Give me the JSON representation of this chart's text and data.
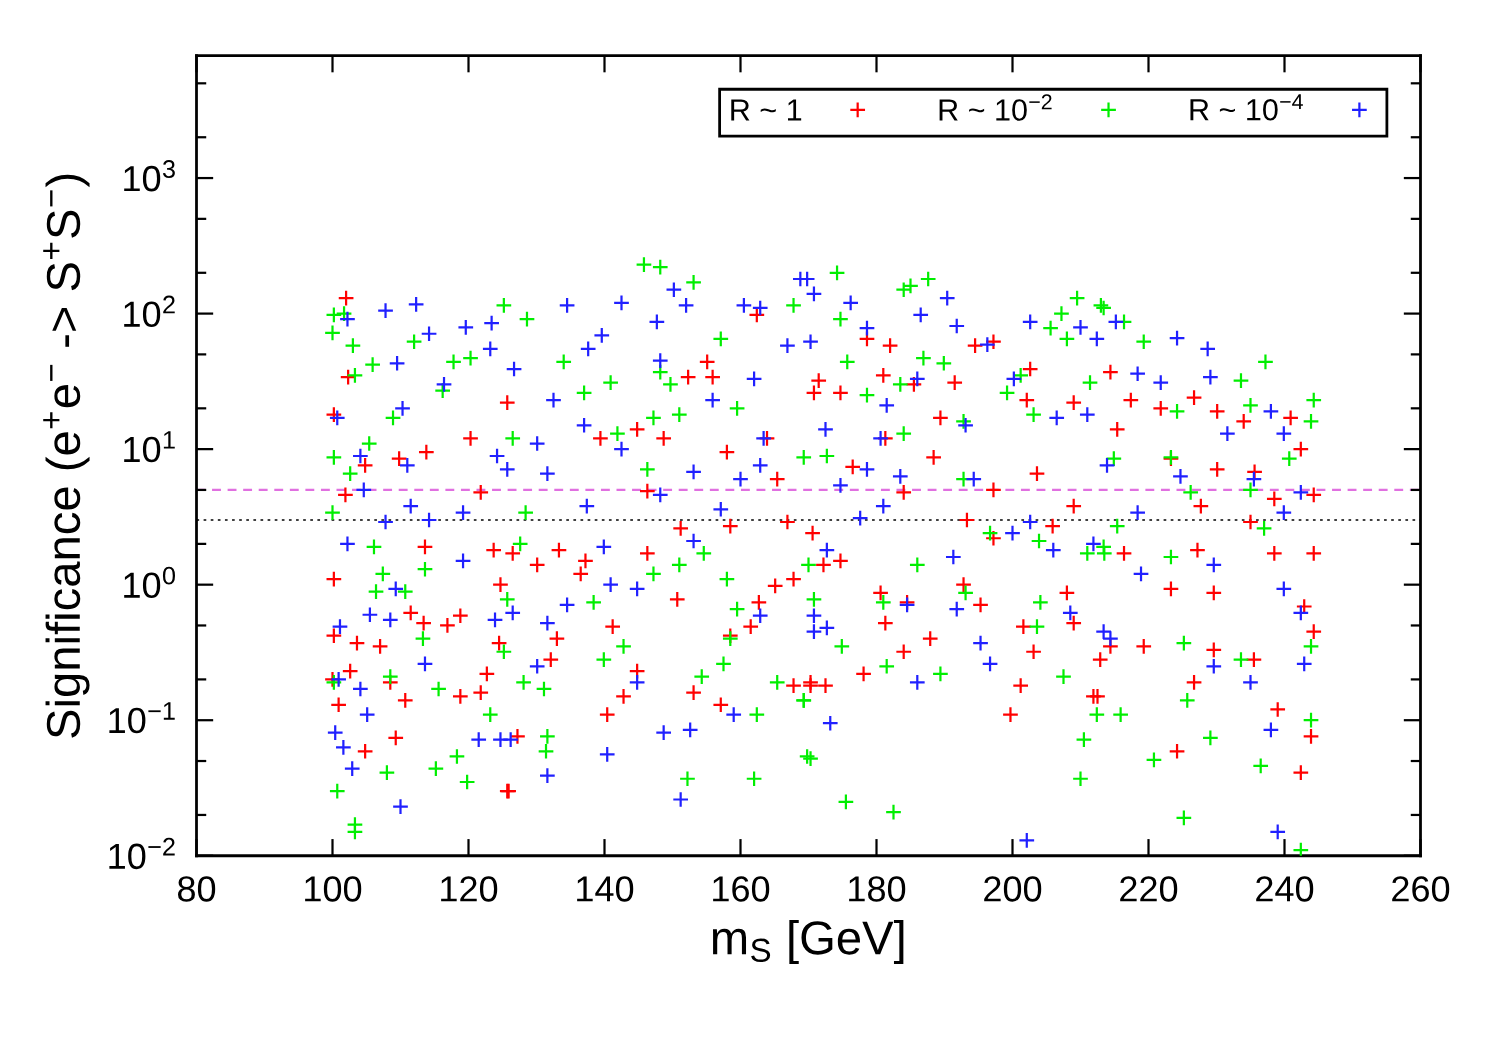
{
  "chart_data": {
    "type": "scatter",
    "xlabel": "m$_{S}$ [GeV]",
    "ylabel": "Significance (e$^{+}$e$^{−}$ -> S$^{+}$S$^{−}$)",
    "xlim": [
      80,
      260
    ],
    "xticks": [
      80,
      100,
      120,
      140,
      160,
      180,
      200,
      220,
      240,
      260
    ],
    "ylim": [
      0.01,
      8000
    ],
    "log": true,
    "yticks": [
      {
        "value": 0.01,
        "label": "10$^{−2}$"
      },
      {
        "value": 0.1,
        "label": "10$^{−1}$"
      },
      {
        "value": 1,
        "label": "10$^{0}$"
      },
      {
        "value": 10,
        "label": "10$^{1}$"
      },
      {
        "value": 100,
        "label": "10$^{2}$"
      },
      {
        "value": 1000,
        "label": "10$^{3}$"
      },
      {
        "value": 0.02,
        "label": null
      },
      {
        "value": 0.05,
        "label": null
      },
      {
        "value": 0.2,
        "label": null
      },
      {
        "value": 0.5,
        "label": null
      },
      {
        "value": 2,
        "label": null
      },
      {
        "value": 5,
        "label": null
      },
      {
        "value": 20,
        "label": null
      },
      {
        "value": 50,
        "label": null
      },
      {
        "value": 200,
        "label": null
      },
      {
        "value": 500,
        "label": null
      },
      {
        "value": 2000,
        "label": null
      },
      {
        "value": 5000,
        "label": null
      }
    ],
    "marker": "cross",
    "legend": "top right",
    "ref_lines": [
      {
        "axis": "y",
        "value": 5,
        "color": "#e070e0",
        "line_style": "dashed"
      },
      {
        "axis": "y",
        "value": 3,
        "color": "#404040",
        "line_style": "dotted"
      }
    ],
    "series": [
      {
        "name": "R ~ 1",
        "color": "#ff0000",
        "x": [
          102,
          102.3,
          100.2,
          104.8,
          101.9,
          100.2,
          100.2,
          102.6,
          103.6,
          107,
          108.5,
          110.7,
          109.3,
          104.8,
          111.5,
          113.4,
          113.6,
          116.9,
          118.8,
          120.3,
          121.8,
          124.7,
          123.7,
          124.5,
          122.7,
          118.8,
          121.8,
          125.7,
          113.8,
          109.8,
          100,
          100.9,
          146.3,
          148.7,
          152.3,
          155.9,
          155.1,
          158,
          158.5,
          163.9,
          165.4,
          170.8,
          170.6,
          167.8,
          165.1,
          162.7,
          158.5,
          157.1,
          153.1,
          144.8,
          142.8,
          140.4,
          141.2,
          137.2,
          133.3,
          136.5,
          132.1,
          133,
          127.2,
          125.9,
          126.5,
          125.7,
          130.1,
          150.7,
          167.8,
          170.3,
          161.5,
          151.2,
          146.3,
          144.8,
          166.9,
          162.4,
          139.4,
          171.5,
          174.7,
          178.6,
          182,
          181,
          185.5,
          189.4,
          191.5,
          194.5,
          197.2,
          202.1,
          202.6,
          209,
          214.4,
          176.5,
          181.3,
          184,
          188.4,
          197.2,
          203.6,
          209,
          193.3,
          197.2,
          205.9,
          172.2,
          174.7,
          180.6,
          184.5,
          192.8,
          195.3,
          208,
          209,
          201.6,
          203.1,
          212.9,
          214.4,
          181.3,
          184,
          187.9,
          178.1,
          172.5,
          170.3,
          201.2,
          199.7,
          211.9,
          217.4,
          221.8,
          226.7,
          230.1,
          234,
          240.9,
          242.4,
          215.4,
          223.3,
          230.1,
          235.6,
          238.5,
          244.3,
          227.7,
          235,
          216.4,
          227.2,
          238.5,
          244.3,
          223.3,
          229.6,
          242.9,
          219.3,
          229.6,
          235.5,
          244.3,
          212.5,
          239,
          243.9,
          224.2,
          242.4,
          226.7
        ],
        "values": [
          130,
          34,
          18,
          7.6,
          4.6,
          1.1,
          0.42,
          0.23,
          0.37,
          0.35,
          0.19,
          0.14,
          0.074,
          0.059,
          0.62,
          0.52,
          1.9,
          0.5,
          0.59,
          12,
          4.8,
          1.0,
          1.8,
          0.37,
          0.22,
          0.15,
          0.16,
          0.03,
          9.5,
          8.5,
          0.2,
          0.13,
          4.9,
          12,
          34,
          34,
          44,
          9.5,
          2.7,
          12,
          6,
          26,
          2.4,
          1.1,
          0.98,
          0.74,
          0.42,
          0.13,
          0.16,
          0.23,
          0.15,
          0.11,
          0.49,
          1.5,
          1.8,
          1.2,
          0.28,
          0.4,
          0.076,
          0.03,
          1.7,
          22,
          1.4,
          0.78,
          0.18,
          0.18,
          0.49,
          2.6,
          1.7,
          14,
          2.9,
          98,
          12,
          32,
          26,
          65,
          58,
          35,
          30,
          17,
          31,
          58,
          62,
          23,
          39,
          22,
          37,
          7.4,
          12,
          4.8,
          8.7,
          5,
          6.6,
          3.8,
          3,
          2.2,
          2.7,
          1.4,
          1.5,
          0.87,
          0.74,
          1.0,
          0.71,
          0.87,
          0.52,
          0.49,
          0.32,
          0.28,
          0.35,
          0.52,
          0.32,
          0.4,
          0.22,
          0.18,
          0.19,
          0.18,
          0.11,
          0.15,
          23,
          20,
          24,
          19,
          16,
          17,
          10,
          14,
          8.5,
          7.1,
          6.8,
          4.3,
          4.6,
          3.8,
          2.9,
          1.7,
          1.8,
          1.7,
          1.7,
          0.93,
          0.87,
          0.69,
          0.35,
          0.33,
          0.28,
          0.45,
          0.15,
          0.12,
          0.076,
          0.059,
          0.041,
          0.19
        ]
      },
      {
        "name": "R ~ 10$^{−2}$",
        "color": "#00ee00",
        "x": [
          100.2,
          101.7,
          100,
          103,
          103.3,
          105.9,
          108.9,
          105.4,
          100.2,
          102.6,
          100,
          106.1,
          107.4,
          106.4,
          110.7,
          113.6,
          113.3,
          108.5,
          100.2,
          108,
          115.2,
          119.8,
          118.3,
          103.3,
          103.3,
          100.7,
          116.2,
          125.2,
          120.3,
          117.8,
          112,
          123.2,
          125.2,
          115.6,
          145.8,
          148.2,
          153.1,
          134,
          140.9,
          148.2,
          149.7,
          151,
          147.2,
          146.3,
          141.9,
          137,
          126.5,
          128.4,
          127.6,
          125.7,
          128.1,
          131.1,
          131.6,
          131.4,
          139.9,
          142.8,
          138.4,
          147.2,
          151,
          154.6,
          158,
          159.5,
          158.5,
          157.5,
          154.3,
          152.2,
          162,
          162.4,
          165.4,
          169.3,
          170.3,
          170.8,
          169.3,
          157.1,
          159.5,
          167.8,
          128.6,
          174.2,
          184,
          185,
          187.6,
          174.7,
          175.7,
          178.6,
          184,
          186.9,
          189.9,
          192.8,
          183.5,
          199.2,
          201.2,
          203.1,
          205.6,
          207.2,
          209.5,
          213.4,
          208,
          211.4,
          214.9,
          192.8,
          196.7,
          203.9,
          211,
          213.4,
          186,
          181,
          181.5,
          189.4,
          193.1,
          204.1,
          203.6,
          207.5,
          212.4,
          210,
          210.5,
          175.5,
          182.5,
          169.8,
          169.3,
          174.9,
          170,
          172.7,
          213,
          216.4,
          219.3,
          237.2,
          233.6,
          224.2,
          235,
          243.9,
          240.7,
          223.3,
          226.2,
          235,
          237,
          215.4,
          244.3,
          213.5,
          223.3,
          225.2,
          233.6,
          243.9,
          225.7,
          215.9,
          229.1,
          236.5,
          220.8,
          243.9,
          225.2,
          242.4
        ],
        "values": [
          98,
          100,
          72,
          58,
          35,
          42,
          17,
          11,
          8.7,
          6.6,
          3.4,
          1.9,
          1.2,
          0.89,
          0.89,
          1.3,
          0.4,
          0.21,
          0.19,
          0.041,
          0.044,
          0.035,
          0.054,
          0.017,
          0.015,
          0.03,
          27,
          115,
          47,
          44,
          62,
          0.11,
          0.32,
          0.17,
          230,
          220,
          170,
          44,
          31,
          37,
          30,
          18,
          17,
          7.1,
          13,
          26,
          12,
          3.4,
          2,
          0.78,
          0.19,
          0.17,
          0.076,
          0.059,
          0.28,
          0.35,
          0.74,
          1.2,
          1.4,
          1.7,
          1.1,
          0.66,
          0.4,
          0.26,
          0.21,
          0.037,
          0.037,
          0.11,
          0.19,
          0.14,
          0.052,
          0.78,
          8.7,
          65,
          20,
          115,
          91,
          200,
          150,
          160,
          180,
          91,
          44,
          25,
          13,
          47,
          43,
          16,
          30,
          26,
          35,
          18,
          78,
          100,
          130,
          110,
          65,
          31,
          8.5,
          6,
          2.4,
          2.1,
          1.7,
          1.9,
          1.4,
          0.74,
          0.25,
          0.22,
          0.87,
          0.74,
          0.49,
          0.21,
          0.11,
          0.037,
          0.072,
          0.025,
          0.021,
          0.054,
          0.14,
          0.35,
          1.4,
          8.9,
          115,
          87,
          62,
          44,
          32,
          19,
          21,
          16,
          8.5,
          8.7,
          4.8,
          5,
          2.6,
          2.7,
          23,
          1.7,
          1.6,
          0.37,
          0.28,
          0.35,
          0.14,
          0.11,
          0.074,
          0.046,
          0.051,
          0.1,
          0.019,
          0.011
        ]
      },
      {
        "name": "R ~ 10$^{−4}$",
        "color": "#2020ff",
        "x": [
          107.8,
          112.3,
          102.2,
          114.2,
          119.6,
          123.4,
          123.2,
          109.5,
          116.4,
          110.3,
          100.7,
          104.1,
          111,
          104.6,
          111.5,
          107.8,
          114.2,
          119.2,
          124.2,
          102.2,
          119.2,
          109.3,
          105.5,
          108.5,
          101.1,
          113.6,
          100.9,
          104.1,
          105.1,
          100.4,
          101.6,
          102.9,
          110,
          121.5,
          124.7,
          123.9,
          150.2,
          152,
          147.7,
          142.5,
          134.5,
          139.6,
          137.6,
          148.2,
          126.7,
          132.5,
          137,
          142.5,
          130.1,
          125.7,
          131.6,
          137.4,
          148.2,
          153.1,
          157.1,
          160,
          162.9,
          163.4,
          160.5,
          162.9,
          166.9,
          169.8,
          162,
          155.9,
          139.9,
          140.9,
          144.8,
          134.5,
          131.6,
          130.1,
          126.5,
          131.6,
          140.4,
          148.7,
          152.6,
          151.2,
          159,
          162.9,
          170.8,
          144.8,
          153.1,
          126.2,
          168.8,
          170.8,
          176.2,
          170.3,
          178.6,
          186.5,
          190.4,
          191.8,
          186,
          181.5,
          172.5,
          180.6,
          193.1,
          200.2,
          196.3,
          202.6,
          210,
          212.4,
          211,
          206.5,
          213.9,
          178.6,
          183.5,
          194.3,
          174.7,
          177.6,
          181,
          172.7,
          191.3,
          200,
          202.6,
          206,
          211.9,
          170.8,
          172.7,
          184.5,
          191.8,
          195.3,
          196.7,
          208.5,
          213.4,
          186,
          173.2,
          202.1,
          215.2,
          224.2,
          228.7,
          218.4,
          221.8,
          229.1,
          238,
          239.9,
          224.7,
          235.5,
          242.4,
          231.6,
          239.9,
          218.4,
          218.9,
          229.6,
          239.9,
          242.4,
          235,
          229.6,
          214.4,
          238,
          239,
          242.9
        ],
        "values": [
          105,
          117,
          91,
          71,
          79,
          85,
          55,
          43,
          30,
          20,
          17,
          8.9,
          7.6,
          5,
          3.8,
          2.9,
          3,
          3.4,
          8.9,
          2,
          1.5,
          0.93,
          0.6,
          0.55,
          0.49,
          0.26,
          0.2,
          0.17,
          0.11,
          0.081,
          0.063,
          0.044,
          0.023,
          0.072,
          0.072,
          0.55,
          150,
          115,
          87,
          120,
          115,
          69,
          55,
          45,
          39,
          23,
          15,
          10,
          11,
          7.1,
          6.6,
          3.8,
          4.6,
          6.8,
          3.6,
          6,
          7.6,
          12,
          115,
          110,
          58,
          180,
          33,
          23,
          1.9,
          1.0,
          0.93,
          0.71,
          0.52,
          0.25,
          0.62,
          0.039,
          0.056,
          0.081,
          0.085,
          0.026,
          0.11,
          0.59,
          0.45,
          0.19,
          2.1,
          0.072,
          180,
          140,
          120,
          62,
          78,
          98,
          130,
          81,
          33,
          21,
          14,
          12,
          15,
          33,
          59,
          87,
          79,
          65,
          18,
          17,
          7.6,
          7.1,
          6.3,
          6,
          5.4,
          3.1,
          3.8,
          1.8,
          1.6,
          2.4,
          2.9,
          1.8,
          2,
          0.59,
          0.48,
          0.71,
          0.66,
          0.37,
          0.26,
          0.62,
          0.45,
          0.19,
          0.095,
          0.013,
          87,
          66,
          55,
          36,
          31,
          34,
          19,
          13,
          6.3,
          6,
          4.8,
          13,
          3.4,
          3.4,
          1.2,
          1.4,
          0.93,
          0.62,
          0.19,
          0.25,
          0.4,
          0.085,
          0.015,
          0.26
        ]
      }
    ]
  }
}
